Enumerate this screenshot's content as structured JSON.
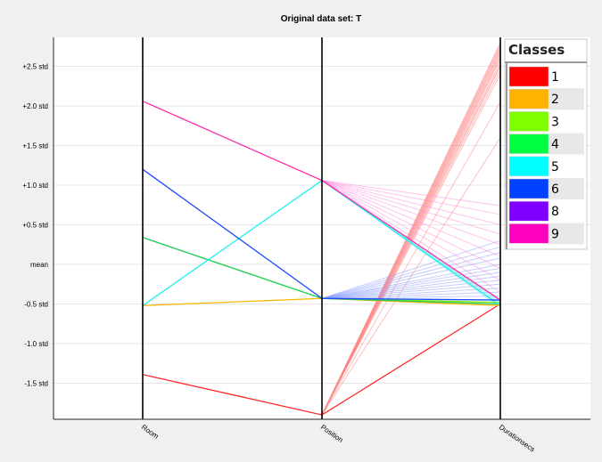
{
  "chart_data": {
    "type": "parallel-coordinates",
    "title": "Original data set: T",
    "axes": [
      "Room",
      "Position",
      "Durationsecs"
    ],
    "y_ticks": [
      "+2.5 std",
      "+2.0 std",
      "+1.5 std",
      "+1.0 std",
      "+0.5 std",
      "mean",
      "-0.5 std",
      "-1.0 std",
      "-1.5 std"
    ],
    "y_tick_values": [
      2.5,
      2.0,
      1.5,
      1.0,
      0.5,
      0,
      -0.5,
      -1.0,
      -1.5
    ],
    "ylim": [
      -1.9,
      2.85
    ],
    "grid": true,
    "legend": {
      "title": "Classes",
      "position": "top-right",
      "entries": [
        {
          "label": "1",
          "color": "#ff0000"
        },
        {
          "label": "2",
          "color": "#ffb300"
        },
        {
          "label": "3",
          "color": "#80ff00"
        },
        {
          "label": "4",
          "color": "#00ff40"
        },
        {
          "label": "5",
          "color": "#00ffff"
        },
        {
          "label": "6",
          "color": "#0040ff"
        },
        {
          "label": "8",
          "color": "#8000ff"
        },
        {
          "label": "9",
          "color": "#ff00c0"
        }
      ]
    },
    "medians": [
      {
        "class": "1",
        "color": "#ff2a2a",
        "values": [
          -1.39,
          -1.9,
          -0.5
        ]
      },
      {
        "class": "2",
        "color": "#ffb300",
        "values": [
          -0.52,
          -0.43,
          -0.52
        ]
      },
      {
        "class": "3",
        "color": "#80ee00",
        "values": [
          0.34,
          -0.43,
          -0.48
        ]
      },
      {
        "class": "4",
        "color": "#22cc66",
        "values": [
          0.34,
          -0.43,
          -0.5
        ]
      },
      {
        "class": "5",
        "color": "#20f0f0",
        "values": [
          -0.52,
          1.06,
          -0.52
        ]
      },
      {
        "class": "6",
        "color": "#1a4dff",
        "values": [
          1.2,
          -0.43,
          -0.45
        ]
      },
      {
        "class": "9",
        "color": "#ff2aa8",
        "values": [
          2.06,
          1.06,
          -0.45
        ]
      }
    ],
    "faint_lines": [
      {
        "class": "1",
        "color": "#ff8080",
        "from_position": -1.9,
        "durations": [
          2.8,
          2.78,
          2.75,
          2.73,
          2.7,
          2.68,
          2.65,
          2.62,
          2.6,
          2.56,
          2.52,
          2.5,
          2.45,
          2.4,
          2.05,
          1.6
        ]
      },
      {
        "class": "6",
        "color": "#8899ff",
        "from_position": -0.43,
        "durations": [
          0.3,
          0.22,
          0.15,
          0.08,
          0.0,
          -0.05,
          -0.1,
          -0.15,
          -0.2,
          -0.25,
          -0.3,
          -0.35,
          -0.4
        ]
      },
      {
        "class": "9",
        "color": "#ff88dd",
        "from_position": 1.06,
        "durations": [
          0.74,
          0.63,
          0.5,
          0.38,
          0.25,
          0.1,
          -0.05,
          -0.2,
          -0.35
        ]
      },
      {
        "class": "5",
        "color": "#66e6e6",
        "from_position": 1.06,
        "durations": [
          -0.5,
          -0.48,
          -0.52,
          -0.46,
          -0.54
        ]
      }
    ]
  }
}
